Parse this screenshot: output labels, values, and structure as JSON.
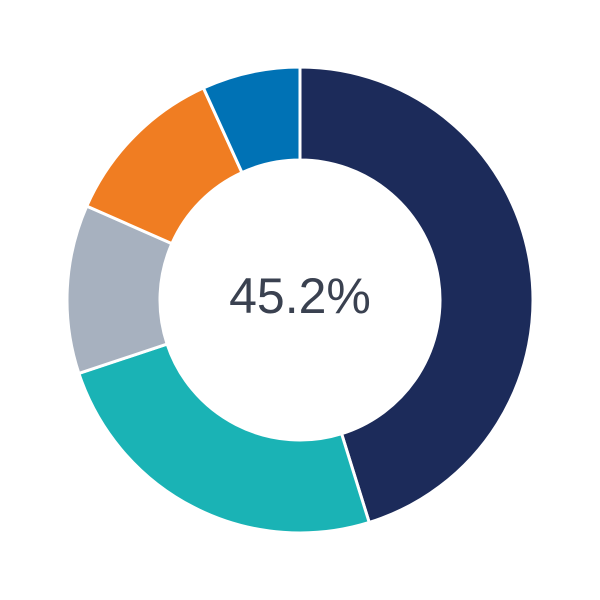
{
  "chart_data": {
    "type": "donut",
    "center_label": "45.2%",
    "values": [
      45.2,
      24.7,
      11.7,
      11.6,
      6.8
    ],
    "colors": [
      "#1c2b5a",
      "#1ab3b5",
      "#a7b1bf",
      "#f07d22",
      "#0072b5"
    ]
  }
}
